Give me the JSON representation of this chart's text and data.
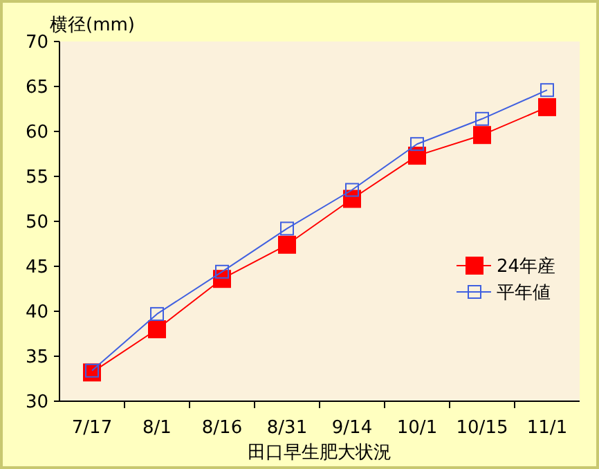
{
  "chart_data": {
    "type": "line",
    "ylabel": "横径(mm)",
    "xlabel": "田口早生肥大状況",
    "categories": [
      "7/17",
      "8/1",
      "8/16",
      "8/31",
      "9/14",
      "10/1",
      "10/15",
      "11/1"
    ],
    "series": [
      {
        "name": "24年産",
        "color": "#ff0000",
        "marker": "square",
        "values": [
          33.2,
          38.0,
          43.6,
          47.4,
          52.5,
          57.3,
          59.6,
          62.7
        ]
      },
      {
        "name": "平年値",
        "color": "#4060e0",
        "marker": "square",
        "values": [
          33.4,
          39.7,
          44.4,
          49.2,
          53.5,
          58.6,
          61.4,
          64.6
        ]
      }
    ],
    "ylim": [
      30,
      70
    ],
    "yticks": [
      30,
      35,
      40,
      45,
      50,
      55,
      60,
      65,
      70
    ],
    "grid": false,
    "legend": "right"
  }
}
